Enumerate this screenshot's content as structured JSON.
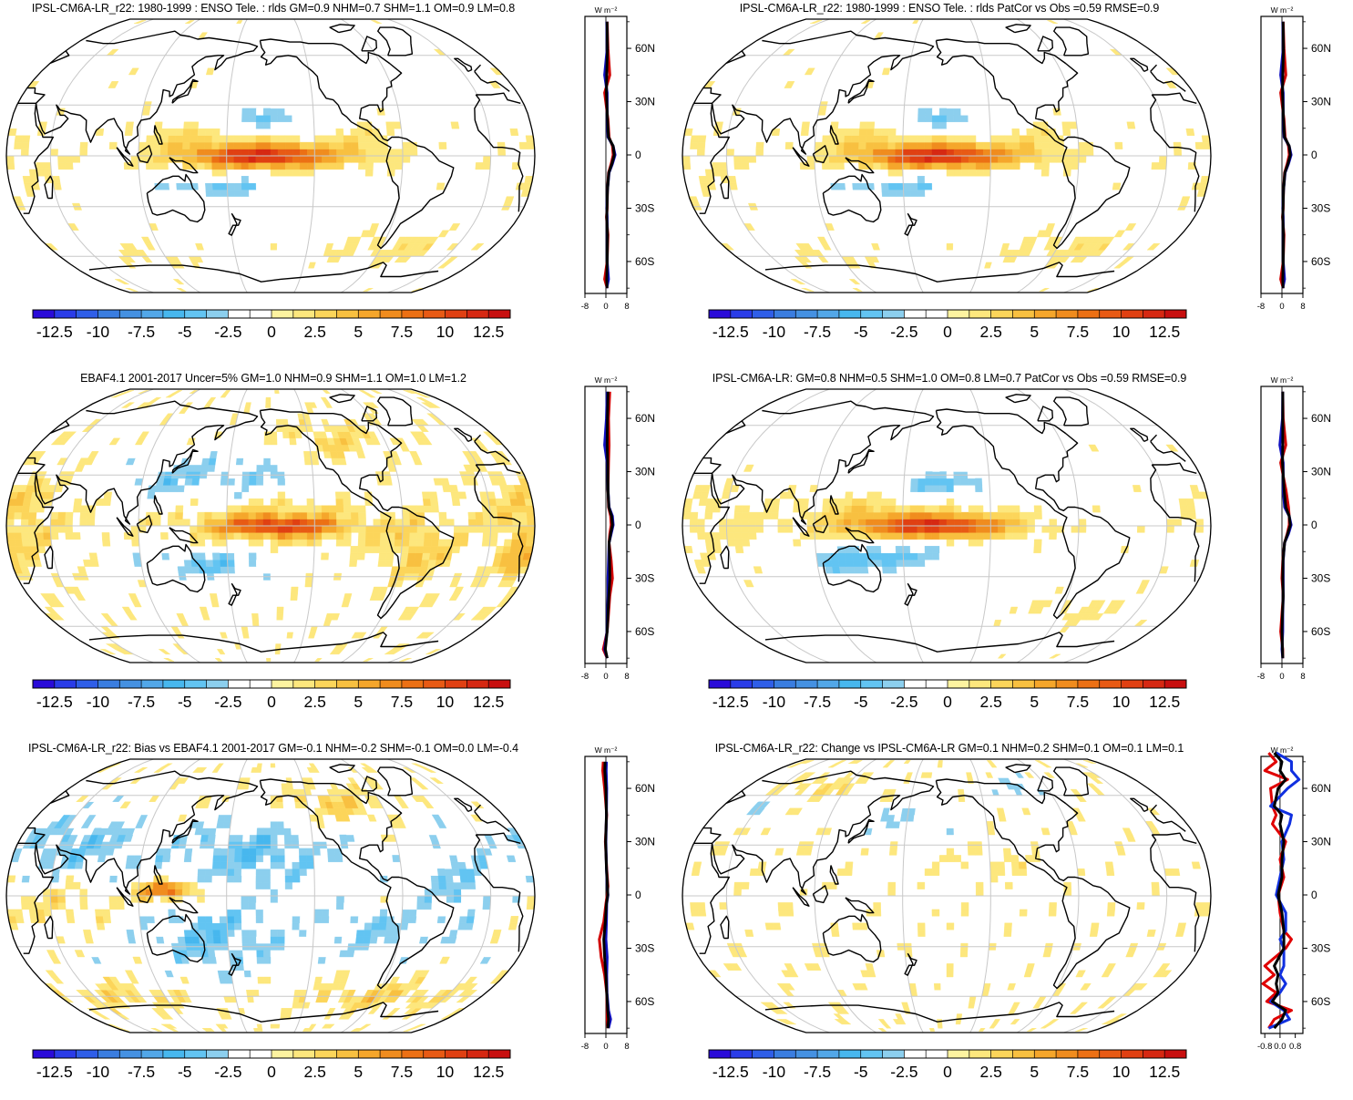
{
  "panels": [
    {
      "id": "p1",
      "title": "IPSL-CM6A-LR_r22: 1980-1999 : ENSO Tele. : rlds GM=0.9 NHM=0.7 SHM=1.1 OM=0.9 LM=0.8",
      "pattern": "model",
      "profile_unit": "W m⁻²"
    },
    {
      "id": "p2",
      "title": "IPSL-CM6A-LR_r22: 1980-1999 : ENSO Tele. : rlds PatCor vs Obs =0.59 RMSE=0.9",
      "pattern": "model",
      "profile_unit": "W m⁻²"
    },
    {
      "id": "p3",
      "title": "EBAF4.1 2001-2017 Uncer=5% GM=1.0 NHM=0.9 SHM=1.1 OM=1.0 LM=1.2",
      "pattern": "obs",
      "profile_unit": "W m⁻²"
    },
    {
      "id": "p4",
      "title": "IPSL-CM6A-LR: GM=0.8 NHM=0.5 SHM=1.0 OM=0.8 LM=0.7 PatCor vs Obs =0.59 RMSE=0.9",
      "pattern": "model2",
      "profile_unit": "W m⁻²"
    },
    {
      "id": "p5",
      "title": "IPSL-CM6A-LR_r22: Bias vs EBAF4.1 2001-2017 GM=-0.1 NHM=-0.2 SHM=-0.1 OM=0.0 LM=-0.4",
      "pattern": "bias",
      "profile_unit": "W m⁻²"
    },
    {
      "id": "p6",
      "title": "IPSL-CM6A-LR_r22: Change vs IPSL-CM6A-LR GM=0.1 NHM=0.2 SHM=0.1 OM=0.1 LM=0.1",
      "pattern": "change",
      "profile_unit": "W m⁻²"
    }
  ],
  "chart_data": {
    "type": "heatmap",
    "projection": "Robinson, Pacific-centred",
    "colorbar": {
      "labels": [
        "-12.5",
        "-10",
        "-7.5",
        "-5",
        "-2.5",
        "0",
        "2.5",
        "5",
        "7.5",
        "10",
        "12.5"
      ],
      "colors": [
        "#2a0bd9",
        "#2a3ce8",
        "#2f5ee8",
        "#3a7de0",
        "#4591e2",
        "#52a7e8",
        "#47b7ee",
        "#62c4f2",
        "#8ccfee",
        "#ffffff",
        "#ffffff",
        "#fdf3a0",
        "#fde77d",
        "#fcd55a",
        "#f8c040",
        "#f5a62b",
        "#f08c1e",
        "#ec7014",
        "#e85a14",
        "#e04012",
        "#d62812",
        "#c80f0f"
      ]
    },
    "latitude_ticks": [
      "60N",
      "30N",
      "0",
      "30S",
      "60S"
    ],
    "profiles": [
      {
        "panel": "p1",
        "xticks": [
          "-8",
          "0",
          "8"
        ],
        "xlim": [
          -8,
          8
        ],
        "lat": [
          75,
          60,
          45,
          35,
          20,
          10,
          5,
          0,
          -5,
          -10,
          -20,
          -30,
          -35,
          -45,
          -60,
          -70,
          -75
        ],
        "series": [
          {
            "color": "#d00000",
            "values": [
              0.5,
              0.8,
              1.5,
              -0.5,
              0.8,
              1.2,
              2.5,
              2.8,
              2.0,
              1.0,
              0.6,
              0.5,
              0.2,
              0.8,
              0.5,
              -0.5,
              0.5
            ]
          },
          {
            "color": "#1010c0",
            "values": [
              0.3,
              0.5,
              -0.5,
              0.5,
              0.5,
              0.8,
              2.8,
              3.5,
              2.5,
              1.2,
              0.6,
              0.3,
              0.5,
              0.5,
              0.5,
              1.0,
              0.3
            ]
          },
          {
            "color": "#000000",
            "values": [
              0.4,
              0.6,
              0.3,
              0.2,
              0.6,
              1.0,
              2.8,
              3.2,
              2.3,
              1.1,
              0.6,
              0.4,
              0.3,
              0.6,
              0.5,
              0.3,
              0.4
            ]
          }
        ]
      },
      {
        "panel": "p2",
        "xticks": [
          "-8",
          "0",
          "8"
        ],
        "xlim": [
          -8,
          8
        ],
        "lat": [
          75,
          60,
          45,
          35,
          20,
          10,
          5,
          0,
          -5,
          -10,
          -20,
          -30,
          -35,
          -45,
          -60,
          -70,
          -75
        ],
        "series": [
          {
            "color": "#d00000",
            "values": [
              0.5,
              0.8,
              1.5,
              -0.5,
              0.8,
              1.2,
              2.5,
              2.8,
              2.0,
              1.0,
              0.6,
              0.5,
              0.2,
              0.8,
              0.5,
              -0.5,
              0.5
            ]
          },
          {
            "color": "#1010c0",
            "values": [
              0.3,
              0.5,
              -0.5,
              0.5,
              0.5,
              0.8,
              2.8,
              3.5,
              2.5,
              1.2,
              0.6,
              0.3,
              0.5,
              0.5,
              0.5,
              1.0,
              0.3
            ]
          },
          {
            "color": "#000000",
            "values": [
              0.4,
              0.6,
              0.3,
              0.2,
              0.6,
              1.0,
              2.8,
              3.2,
              2.3,
              1.1,
              0.6,
              0.4,
              0.3,
              0.6,
              0.5,
              0.3,
              0.4
            ]
          }
        ]
      },
      {
        "panel": "p3",
        "xticks": [
          "-8",
          "0",
          "8"
        ],
        "xlim": [
          -8,
          8
        ],
        "lat": [
          75,
          60,
          45,
          35,
          20,
          10,
          5,
          0,
          -5,
          -10,
          -20,
          -30,
          -40,
          -50,
          -60,
          -70,
          -75
        ],
        "series": [
          {
            "color": "#d00000",
            "values": [
              1.5,
              1.0,
              1.2,
              1.0,
              0.8,
              1.0,
              1.8,
              2.0,
              1.5,
              1.2,
              2.0,
              2.5,
              1.5,
              1.0,
              0.5,
              -1.0,
              0.5
            ]
          },
          {
            "color": "#1010c0",
            "values": [
              0.5,
              0.2,
              -0.5,
              0.5,
              0.8,
              1.2,
              2.5,
              2.8,
              2.0,
              1.2,
              1.0,
              0.8,
              0.8,
              0.6,
              0.4,
              -0.5,
              0.5
            ]
          },
          {
            "color": "#000000",
            "values": [
              0.8,
              0.6,
              0.5,
              0.7,
              0.8,
              1.1,
              2.2,
              2.5,
              1.8,
              1.2,
              1.4,
              1.5,
              1.1,
              0.8,
              0.5,
              -0.2,
              0.5
            ]
          }
        ]
      },
      {
        "panel": "p4",
        "xticks": [
          "-8",
          "0",
          "8"
        ],
        "xlim": [
          -8,
          8
        ],
        "lat": [
          75,
          60,
          45,
          35,
          20,
          10,
          5,
          0,
          -5,
          -10,
          -20,
          -30,
          -40,
          -50,
          -60,
          -70,
          -75
        ],
        "series": [
          {
            "color": "#d00000",
            "values": [
              0.3,
              0.5,
              1.5,
              -0.5,
              1.5,
              2.5,
              2.8,
              2.8,
              2.0,
              1.0,
              0.3,
              0.0,
              0.5,
              0.0,
              -0.5,
              0.3,
              0.3
            ]
          },
          {
            "color": "#1010c0",
            "values": [
              0.3,
              0.2,
              -0.8,
              0.5,
              0.5,
              1.0,
              2.8,
              3.5,
              2.5,
              1.0,
              0.5,
              0.5,
              0.5,
              0.3,
              0.3,
              0.0,
              0.3
            ]
          },
          {
            "color": "#000000",
            "values": [
              0.3,
              0.3,
              0.3,
              0.2,
              0.8,
              1.5,
              2.8,
              3.2,
              2.2,
              1.0,
              0.4,
              0.3,
              0.5,
              0.2,
              0.0,
              0.2,
              0.3
            ]
          }
        ]
      },
      {
        "panel": "p5",
        "xticks": [
          "-8",
          "0",
          "8"
        ],
        "xlim": [
          -8,
          8
        ],
        "lat": [
          75,
          70,
          60,
          45,
          30,
          15,
          5,
          0,
          -5,
          -15,
          -25,
          -35,
          -45,
          -55,
          -65,
          -70,
          -75
        ],
        "series": [
          {
            "color": "#d00000",
            "values": [
              -1.0,
              -1.2,
              -0.5,
              0.3,
              -0.2,
              0.3,
              0.8,
              0.5,
              0.0,
              -0.8,
              -2.5,
              -1.8,
              -0.5,
              0.3,
              0.5,
              0.5,
              0.8
            ]
          },
          {
            "color": "#1010c0",
            "values": [
              0.2,
              0.1,
              0.3,
              0.2,
              0.0,
              0.2,
              0.5,
              0.8,
              0.3,
              0.2,
              0.0,
              0.5,
              0.3,
              0.4,
              1.0,
              1.8,
              1.0
            ]
          },
          {
            "color": "#000000",
            "values": [
              -0.3,
              -0.4,
              0.0,
              0.2,
              -0.1,
              0.2,
              0.6,
              0.7,
              0.2,
              -0.2,
              -0.8,
              -0.5,
              0.0,
              0.3,
              0.7,
              1.0,
              0.8
            ]
          }
        ]
      },
      {
        "panel": "p6",
        "xticks": [
          "-0.8",
          "0.0",
          "0.8"
        ],
        "xlim": [
          -1.0,
          1.2
        ],
        "lat": [
          80,
          75,
          70,
          65,
          60,
          50,
          45,
          40,
          30,
          20,
          10,
          0,
          -10,
          -20,
          -25,
          -30,
          -40,
          -45,
          -50,
          -55,
          -60,
          -65,
          -70,
          -75
        ],
        "series": [
          {
            "color": "#e00000",
            "values": [
              -0.6,
              -0.2,
              -0.8,
              0.4,
              -0.5,
              -0.4,
              -0.2,
              -0.4,
              0.3,
              0.0,
              0.2,
              -0.1,
              0.0,
              0.2,
              0.6,
              0.3,
              -0.8,
              -0.3,
              -0.9,
              -0.2,
              -0.7,
              0.6,
              -0.3,
              -0.6
            ]
          },
          {
            "color": "#1030e0",
            "values": [
              -0.2,
              0.6,
              0.6,
              1.0,
              0.4,
              -0.5,
              0.6,
              0.5,
              0.1,
              0.2,
              0.0,
              -0.2,
              0.3,
              0.3,
              0.0,
              0.2,
              0.2,
              0.0,
              0.3,
              0.0,
              -0.5,
              0.2,
              0.5,
              -0.6
            ]
          },
          {
            "color": "#000000",
            "values": [
              -0.3,
              0.1,
              0.0,
              0.3,
              -0.1,
              -0.3,
              0.1,
              0.0,
              0.2,
              0.1,
              0.1,
              -0.1,
              0.1,
              0.2,
              0.2,
              0.2,
              -0.3,
              -0.1,
              -0.2,
              -0.1,
              -0.4,
              0.3,
              0.1,
              -0.3
            ]
          }
        ]
      }
    ]
  }
}
